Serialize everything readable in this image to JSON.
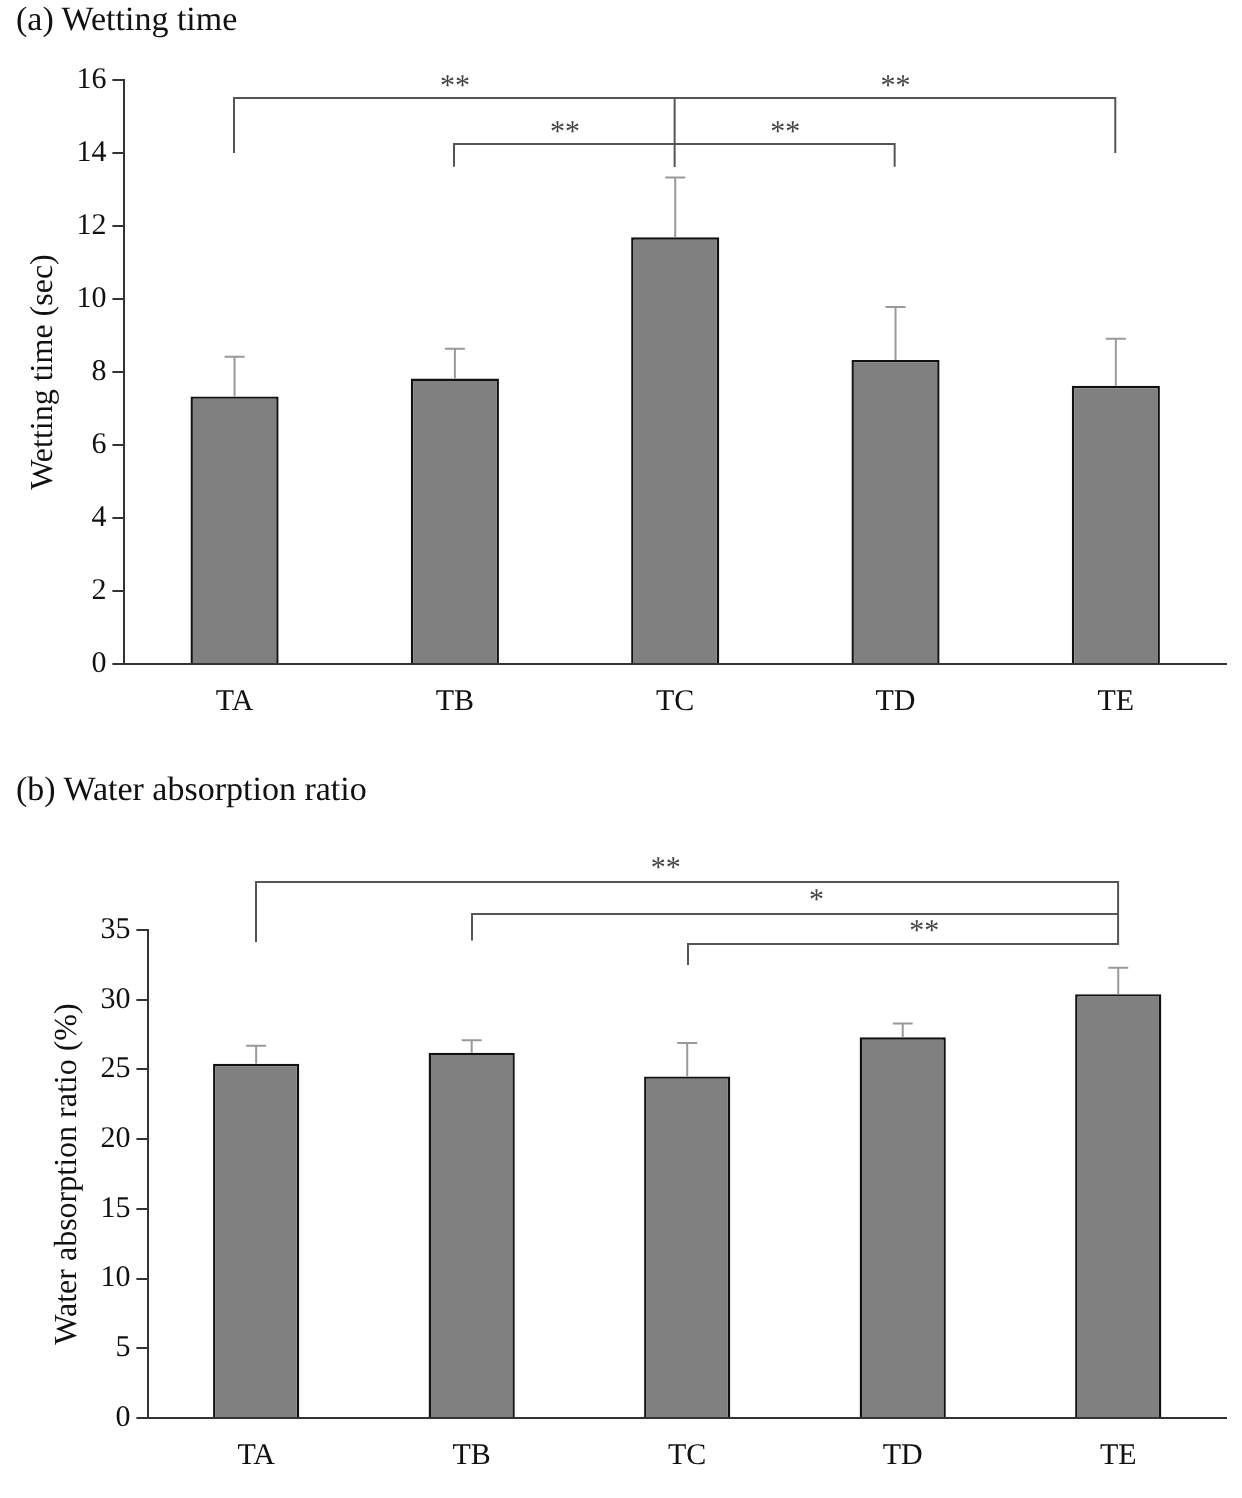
{
  "chart_data": [
    {
      "type": "bar",
      "title": "(a) Wetting time",
      "ylabel": "Wetting time (sec)",
      "categories": [
        "TA",
        "TB",
        "TC",
        "TD",
        "TE"
      ],
      "values": [
        7.33,
        7.82,
        11.69,
        8.33,
        7.62
      ],
      "color": "#808080",
      "errors": [
        [
          7.33,
          8.42
        ],
        [
          7.82,
          8.64
        ],
        [
          11.69,
          13.33
        ],
        [
          8.33,
          9.78
        ],
        [
          7.62,
          8.91
        ]
      ],
      "ylim": [
        0,
        16
      ],
      "yticks": [
        0,
        2,
        4,
        6,
        8,
        10,
        12,
        14,
        16
      ],
      "grid": false,
      "legend": false,
      "annotations": [
        "**",
        "**",
        "**",
        "**"
      ]
    },
    {
      "type": "bar",
      "title": "(b) Water absorption ratio",
      "ylabel": "Water absorption ratio (%)",
      "categories": [
        "TA",
        "TB",
        "TC",
        "TD",
        "TE"
      ],
      "values": [
        25.4,
        26.2,
        24.5,
        27.3,
        30.4
      ],
      "color": "#808080",
      "errors": [
        [
          25.4,
          26.7
        ],
        [
          26.2,
          27.1
        ],
        [
          24.5,
          26.9
        ],
        [
          27.3,
          28.3
        ],
        [
          30.4,
          32.3
        ]
      ],
      "ylim": [
        0,
        35
      ],
      "yticks": [
        0,
        5,
        10,
        15,
        20,
        25,
        30,
        35
      ],
      "grid": false,
      "legend": false,
      "annotations": [
        "**",
        "*",
        "**"
      ]
    }
  ]
}
